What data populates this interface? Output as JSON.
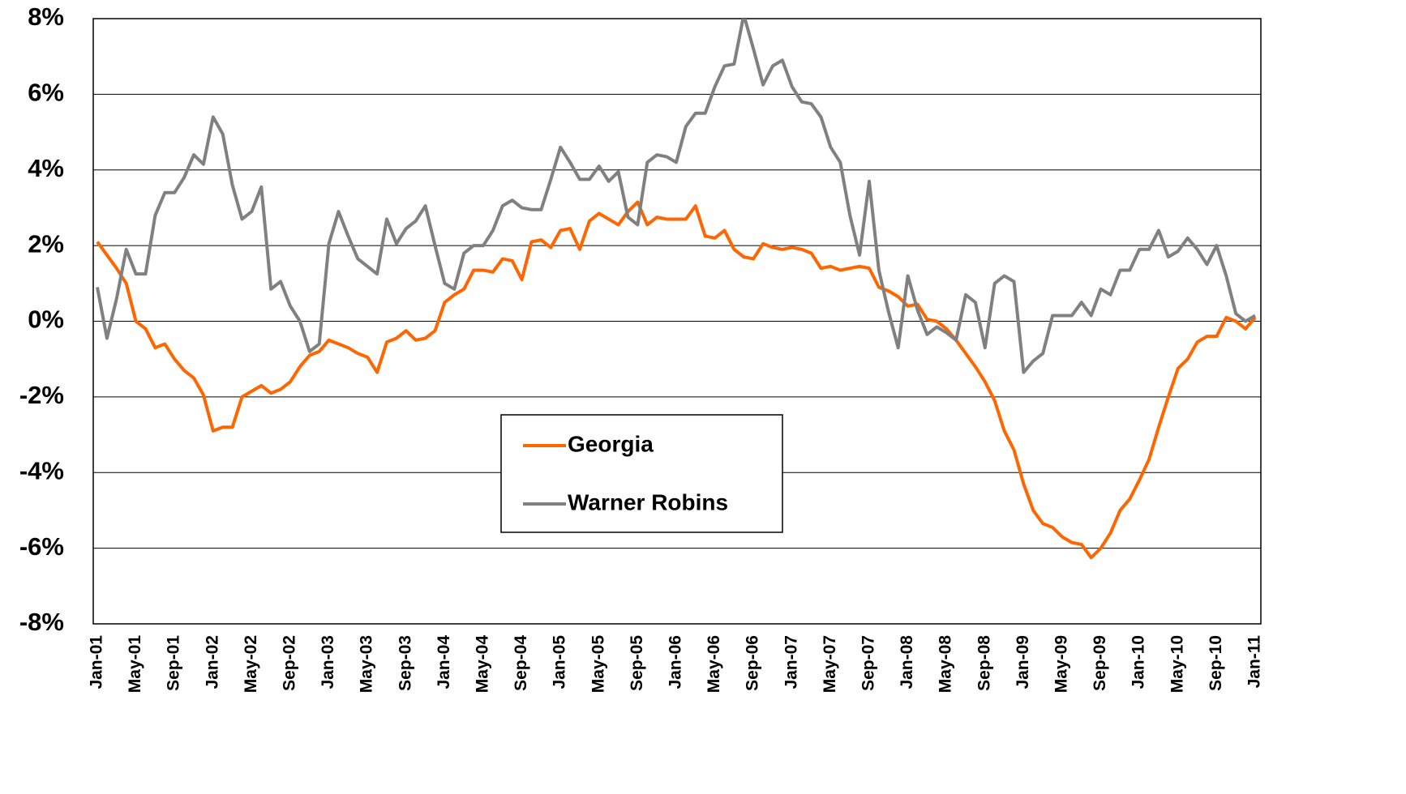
{
  "chart_data": {
    "type": "line",
    "categories": [
      "Jan-01",
      null,
      null,
      null,
      "May-01",
      null,
      null,
      null,
      "Sep-01",
      null,
      null,
      null,
      "Jan-02",
      null,
      null,
      null,
      "May-02",
      null,
      null,
      null,
      "Sep-02",
      null,
      null,
      null,
      "Jan-03",
      null,
      null,
      null,
      "May-03",
      null,
      null,
      null,
      "Sep-03",
      null,
      null,
      null,
      "Jan-04",
      null,
      null,
      null,
      "May-04",
      null,
      null,
      null,
      "Sep-04",
      null,
      null,
      null,
      "Jan-05",
      null,
      null,
      null,
      "May-05",
      null,
      null,
      null,
      "Sep-05",
      null,
      null,
      null,
      "Jan-06",
      null,
      null,
      null,
      "May-06",
      null,
      null,
      null,
      "Sep-06",
      null,
      null,
      null,
      "Jan-07",
      null,
      null,
      null,
      "May-07",
      null,
      null,
      null,
      "Sep-07",
      null,
      null,
      null,
      "Jan-08",
      null,
      null,
      null,
      "May-08",
      null,
      null,
      null,
      "Sep-08",
      null,
      null,
      null,
      "Jan-09",
      null,
      null,
      null,
      "May-09",
      null,
      null,
      null,
      "Sep-09",
      null,
      null,
      null,
      "Jan-10",
      null,
      null,
      null,
      "May-10",
      null,
      null,
      null,
      "Sep-10",
      null,
      null,
      null,
      "Jan-11"
    ],
    "series": [
      {
        "name": "Georgia",
        "color": "#ff6600",
        "values": [
          2.1,
          1.75,
          1.4,
          1.0,
          0.0,
          -0.2,
          -0.7,
          -0.6,
          -1.0,
          -1.3,
          -1.5,
          -1.95,
          -2.9,
          -2.8,
          -2.8,
          -2.0,
          -1.85,
          -1.7,
          -1.9,
          -1.8,
          -1.6,
          -1.2,
          -0.9,
          -0.8,
          -0.5,
          -0.6,
          -0.7,
          -0.85,
          -0.95,
          -1.35,
          -0.55,
          -0.45,
          -0.25,
          -0.5,
          -0.45,
          -0.25,
          0.5,
          0.7,
          0.85,
          1.35,
          1.35,
          1.3,
          1.65,
          1.6,
          1.1,
          2.1,
          2.15,
          1.95,
          2.4,
          2.45,
          1.9,
          2.65,
          2.85,
          2.7,
          2.55,
          2.9,
          3.15,
          2.55,
          2.75,
          2.7,
          2.7,
          2.7,
          3.05,
          2.25,
          2.2,
          2.4,
          1.9,
          1.7,
          1.65,
          2.05,
          1.95,
          1.9,
          1.95,
          1.9,
          1.8,
          1.4,
          1.45,
          1.35,
          1.4,
          1.45,
          1.4,
          0.9,
          0.8,
          0.65,
          0.4,
          0.45,
          0.05,
          0.0,
          -0.2,
          -0.5,
          -0.85,
          -1.2,
          -1.6,
          -2.1,
          -2.9,
          -3.4,
          -4.3,
          -5.0,
          -5.35,
          -5.45,
          -5.7,
          -5.85,
          -5.9,
          -6.25,
          -6.0,
          -5.6,
          -5.0,
          -4.7,
          -4.2,
          -3.65,
          -2.8,
          -2.0,
          -1.25,
          -1.0,
          -0.55,
          -0.4,
          -0.4,
          0.1,
          0.0,
          -0.2,
          0.1
        ]
      },
      {
        "name": "Warner Robins",
        "color": "#808080",
        "values": [
          0.9,
          -0.45,
          0.6,
          1.9,
          1.25,
          1.25,
          2.8,
          3.4,
          3.4,
          3.8,
          4.4,
          4.15,
          5.4,
          4.95,
          3.6,
          2.7,
          2.9,
          3.55,
          0.85,
          1.05,
          0.4,
          0.0,
          -0.8,
          -0.6,
          2.05,
          2.9,
          2.25,
          1.65,
          1.45,
          1.25,
          2.7,
          2.05,
          2.45,
          2.65,
          3.05,
          2.0,
          1.0,
          0.85,
          1.8,
          2.0,
          2.0,
          2.4,
          3.05,
          3.2,
          3.0,
          2.95,
          2.95,
          3.75,
          4.6,
          4.2,
          3.75,
          3.75,
          4.1,
          3.7,
          3.95,
          2.75,
          2.55,
          4.2,
          4.4,
          4.35,
          4.2,
          5.15,
          5.5,
          5.5,
          6.2,
          6.75,
          6.8,
          8.1,
          7.2,
          6.25,
          6.75,
          6.9,
          6.2,
          5.8,
          5.75,
          5.4,
          4.6,
          4.2,
          2.8,
          1.75,
          3.7,
          1.35,
          0.25,
          -0.7,
          1.2,
          0.3,
          -0.35,
          -0.15,
          -0.3,
          -0.5,
          0.7,
          0.5,
          -0.7,
          1.0,
          1.2,
          1.05,
          -1.35,
          -1.05,
          -0.85,
          0.15,
          0.15,
          0.15,
          0.5,
          0.15,
          0.85,
          0.7,
          1.35,
          1.35,
          1.9,
          1.9,
          2.4,
          1.7,
          1.85,
          2.2,
          1.9,
          1.5,
          2.0,
          1.2,
          0.2,
          0.0,
          0.15
        ]
      }
    ],
    "ylim": [
      -8,
      8
    ],
    "yticks": [
      {
        "value": -8,
        "label": "-8%"
      },
      {
        "value": -6,
        "label": "-6%"
      },
      {
        "value": -4,
        "label": "-4%"
      },
      {
        "value": -2,
        "label": "-2%"
      },
      {
        "value": 0,
        "label": "0%"
      },
      {
        "value": 2,
        "label": "2%"
      },
      {
        "value": 4,
        "label": "4%"
      },
      {
        "value": 6,
        "label": "6%"
      },
      {
        "value": 8,
        "label": "8%"
      }
    ],
    "grid": true
  }
}
